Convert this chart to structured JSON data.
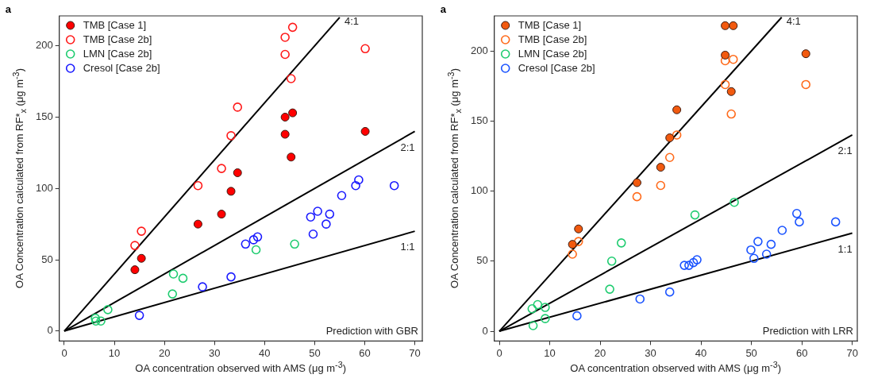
{
  "chart_data": [
    {
      "type": "scatter",
      "title": "a",
      "xlabel": "OA concentration observed with AMS (μg m$^{-3}$)",
      "ylabel": "OA Concentration calculated from RF*$_{x}$ (μg m$^{-3}$)",
      "xlim": [
        -1,
        71.5
      ],
      "ylim": [
        -7,
        221
      ],
      "xticks": [
        0,
        10,
        20,
        30,
        40,
        50,
        60,
        70
      ],
      "yticks": [
        0,
        50,
        100,
        150,
        200
      ],
      "grid": false,
      "legend": "top left",
      "series": [
        {
          "type": "line",
          "name": "4:1",
          "color": "#000000",
          "x": [
            0,
            55
          ],
          "values": [
            0,
            220
          ],
          "marker": "none"
        },
        {
          "type": "line",
          "name": "2:1",
          "color": "#000000",
          "x": [
            0,
            70
          ],
          "values": [
            0,
            140
          ],
          "marker": "none"
        },
        {
          "type": "line",
          "name": "1:1",
          "color": "#000000",
          "x": [
            0,
            70
          ],
          "values": [
            0,
            70
          ],
          "marker": "none"
        },
        {
          "name": "TMB [Case 1]",
          "color": "#ff0000",
          "marker": "circle",
          "x": [
            14.1,
            15.4,
            26.7,
            31.4,
            33.3,
            34.6,
            44.1,
            45.6,
            44.1,
            45.3,
            60.1
          ],
          "values": [
            43,
            51,
            75,
            82,
            98,
            111,
            150,
            153,
            138,
            122,
            140
          ]
        },
        {
          "name": "TMB [Case 2b]",
          "color": "#ff1a1a",
          "marker": "circle-open",
          "x": [
            14.1,
            15.4,
            26.7,
            31.4,
            33.3,
            34.6,
            45.6,
            44.1,
            44.1,
            45.3,
            60.1
          ],
          "values": [
            60,
            70,
            102,
            114,
            137,
            157,
            213,
            206,
            194,
            177,
            198
          ]
        },
        {
          "name": "LMN [Case 2b]",
          "color": "#1fcc70",
          "marker": "circle-open",
          "x": [
            6.2,
            6.3,
            7.3,
            8.7,
            21.6,
            21.8,
            23.7,
            38.3,
            46
          ],
          "values": [
            9,
            7,
            7,
            15,
            26,
            40,
            37,
            57,
            61
          ]
        },
        {
          "name": "Cresol [Case 2b]",
          "color": "#1a1aff",
          "marker": "circle-open",
          "x": [
            15,
            27.6,
            33.3,
            36.2,
            37.8,
            38.6,
            49.2,
            49.7,
            50.6,
            52.3,
            53,
            55.4,
            58.2,
            58.8,
            65.9
          ],
          "values": [
            11,
            31,
            38,
            61,
            64,
            66,
            80,
            68,
            84,
            75,
            82,
            95,
            102,
            106,
            102
          ]
        }
      ],
      "annotations": [
        "Prediction with GBR"
      ]
    },
    {
      "type": "scatter",
      "title": "a",
      "xlabel": "OA concentration observed with AMS (μg m$^{-3}$)",
      "ylabel": "OA Concentration calculated from RF*$_{x}$ (μg m$^{-3}$)",
      "xlim": [
        -1,
        71
      ],
      "ylim": [
        -7,
        225
      ],
      "xticks": [
        0,
        10,
        20,
        30,
        40,
        50,
        60,
        70
      ],
      "yticks": [
        0,
        50,
        100,
        150,
        200
      ],
      "grid": false,
      "legend": "top left",
      "series": [
        {
          "type": "line",
          "name": "4:1",
          "color": "#000000",
          "x": [
            0,
            56
          ],
          "values": [
            0,
            224
          ],
          "marker": "none"
        },
        {
          "type": "line",
          "name": "2:1",
          "color": "#000000",
          "x": [
            0,
            70
          ],
          "values": [
            0,
            140
          ],
          "marker": "none"
        },
        {
          "type": "line",
          "name": "1:1",
          "color": "#000000",
          "x": [
            0,
            70
          ],
          "values": [
            0,
            70
          ],
          "marker": "none"
        },
        {
          "name": "TMB [Case 1]",
          "color": "#f25a0f",
          "marker": "circle",
          "x": [
            14.5,
            15.7,
            27.3,
            32,
            33.8,
            35.2,
            44.8,
            46.4,
            44.8,
            46,
            60.8
          ],
          "values": [
            62,
            73,
            106,
            117,
            138,
            158,
            218,
            218,
            197,
            171,
            198
          ]
        },
        {
          "name": "TMB [Case 2b]",
          "color": "#ff6a1a",
          "marker": "circle-open",
          "x": [
            14.5,
            15.7,
            27.3,
            32,
            33.8,
            35.2,
            44.8,
            46.4,
            44.8,
            46,
            60.8
          ],
          "values": [
            55,
            64,
            96,
            104,
            124,
            140,
            193,
            194,
            176,
            155,
            176
          ]
        },
        {
          "name": "LMN [Case 2b]",
          "color": "#1fcc70",
          "marker": "circle-open",
          "x": [
            6.5,
            6.7,
            7.6,
            9.1,
            9.1,
            21.9,
            22.3,
            24.2,
            38.8,
            46.6
          ],
          "values": [
            16,
            4,
            19,
            17,
            9,
            30,
            50,
            63,
            83,
            92
          ]
        },
        {
          "name": "Cresol [Case 2b]",
          "color": "#1a53ff",
          "marker": "circle-open",
          "x": [
            15.4,
            27.9,
            33.8,
            36.7,
            37.6,
            38.5,
            39.2,
            49.9,
            50.5,
            51.3,
            53,
            53.9,
            56.1,
            59,
            59.5,
            66.7
          ],
          "values": [
            11,
            23,
            28,
            47,
            47,
            49,
            51,
            58,
            52,
            64,
            55,
            62,
            72,
            84,
            78,
            78
          ]
        }
      ],
      "annotations": [
        "Prediction with LRR"
      ]
    }
  ]
}
